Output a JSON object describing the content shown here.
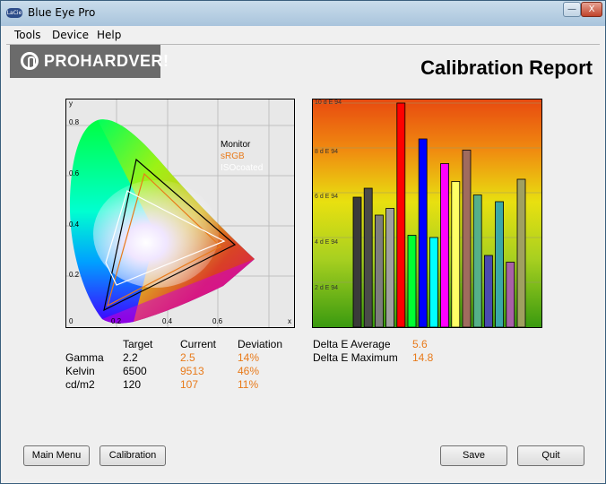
{
  "window": {
    "title": "Blue Eye Pro",
    "app_icon": "lacie-logo-icon",
    "close_glyph": "X",
    "minimize_glyph": "—"
  },
  "menu": {
    "items": [
      "Tools",
      "Device",
      "Help"
    ]
  },
  "watermark": {
    "text": "PROHARDVER!"
  },
  "report": {
    "title": "Calibration Report"
  },
  "cie_chart": {
    "y_axis_label": "y",
    "x_axis_label": "x",
    "y_ticks": [
      "0.8",
      "0.6",
      "0.4",
      "0.2",
      "0"
    ],
    "x_ticks": [
      "0.2",
      "0.4",
      "0.6"
    ],
    "legend": [
      {
        "label": "Monitor",
        "color": "#000000"
      },
      {
        "label": "sRGB",
        "color": "#e87a1a"
      },
      {
        "label": "ISOcoated",
        "color": "#ffffff"
      }
    ]
  },
  "chart_data": {
    "type": "bar",
    "ylabel_ticks": [
      "10 d E 94",
      "8 d E 94",
      "6 d E 94",
      "4 d E 94",
      "2 d E 94"
    ],
    "ylim": [
      0,
      10
    ],
    "values": [
      5.8,
      6.2,
      5.0,
      5.3,
      10.0,
      4.1,
      8.4,
      4.0,
      7.3,
      6.5,
      7.9,
      5.9,
      3.2,
      5.6,
      2.9,
      6.6
    ],
    "colors": [
      "#3a3a3a",
      "#4a4a4a",
      "#7d7d7d",
      "#a0a0a0",
      "#ff0000",
      "#00ff33",
      "#0000ff",
      "#00ffff",
      "#ff00ff",
      "#ffff66",
      "#a06b5e",
      "#55b08a",
      "#4a4ab0",
      "#3aa8a8",
      "#a860a8",
      "#a0a060"
    ]
  },
  "stats": {
    "headers": {
      "target": "Target",
      "current": "Current",
      "deviation": "Deviation"
    },
    "rows": [
      {
        "label": "Gamma",
        "target": "2.2",
        "current": "2.5",
        "deviation": "14%"
      },
      {
        "label": "Kelvin",
        "target": "6500",
        "current": "9513",
        "deviation": "46%"
      },
      {
        "label": "cd/m2",
        "target": "120",
        "current": "107",
        "deviation": "11%"
      }
    ],
    "delta": [
      {
        "label": "Delta E Average",
        "value": "5.6"
      },
      {
        "label": "Delta E Maximum",
        "value": "14.8"
      }
    ]
  },
  "buttons": {
    "main_menu": "Main Menu",
    "calibration": "Calibration",
    "save": "Save",
    "quit": "Quit"
  },
  "colors": {
    "accent_orange": "#e87a1a"
  }
}
